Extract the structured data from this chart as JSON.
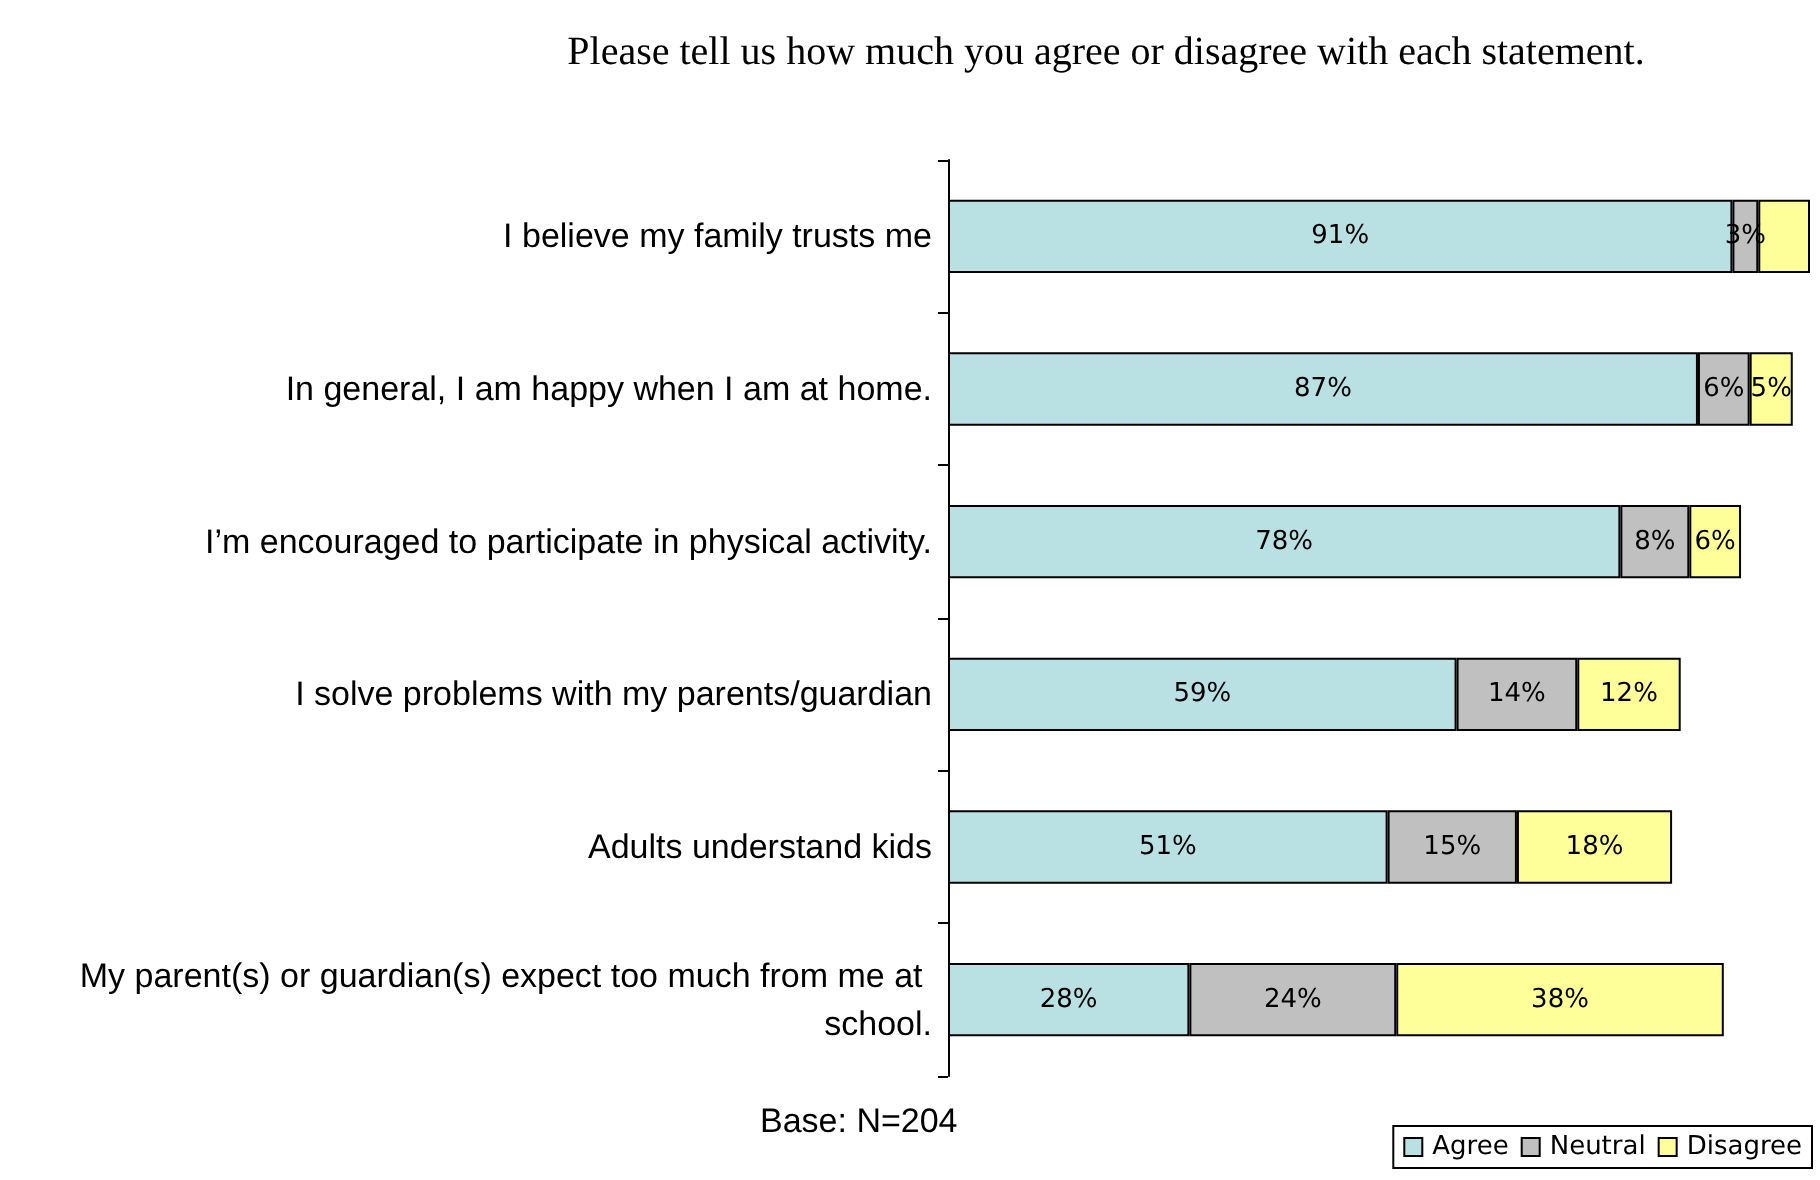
{
  "chart_data": {
    "type": "bar",
    "orientation": "horizontal",
    "stacked": true,
    "title": "Please tell us how much you agree or disagree with each statement.",
    "categories": [
      "I believe my family trusts me",
      "In general, I am happy when I am at home.",
      "I’m encouraged to participate in physical activity.",
      "I solve problems with my parents/guardian",
      "Adults understand kids",
      "My parent(s) or guardian(s) expect too much from me at school."
    ],
    "series": [
      {
        "name": "Agree",
        "color": "#b9e0e3",
        "values": [
          91,
          87,
          78,
          59,
          51,
          28
        ],
        "value_labels": [
          "91%",
          "87%",
          "78%",
          "59%",
          "51%",
          "28%"
        ]
      },
      {
        "name": "Neutral",
        "color": "#c0c0c0",
        "values": [
          3,
          6,
          8,
          14,
          15,
          24
        ],
        "value_labels": [
          "3%",
          "6%",
          "8%",
          "14%",
          "15%",
          "24%"
        ]
      },
      {
        "name": "Disagree",
        "color": "#ffff99",
        "values": [
          6,
          5,
          6,
          12,
          18,
          38
        ],
        "value_labels": [
          null,
          "5%",
          "6%",
          "12%",
          "18%",
          "38%"
        ]
      }
    ],
    "annotations": [
      "Base: N=204"
    ],
    "legend": "bottom right",
    "grid": false
  }
}
